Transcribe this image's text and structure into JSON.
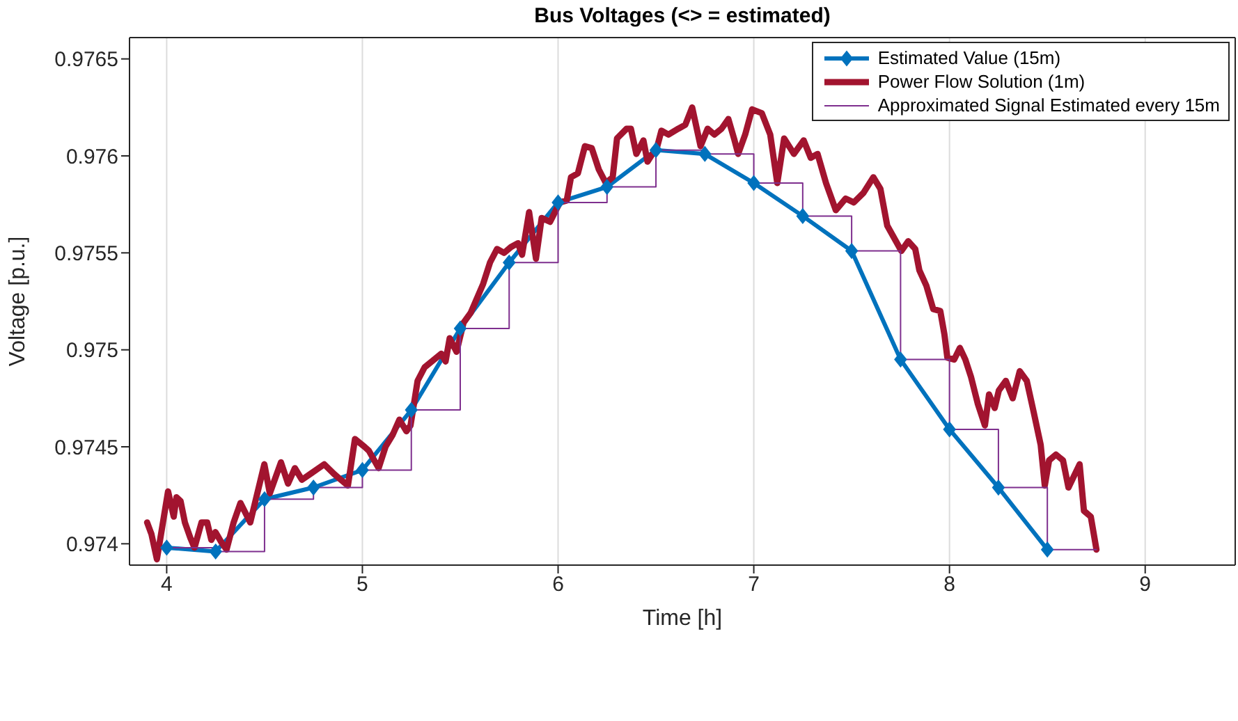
{
  "chart_data": {
    "type": "line",
    "title": "Bus Voltages (<> = estimated)",
    "xlabel": "Time [h]",
    "ylabel": "Voltage [p.u.]",
    "xlim": [
      3.81,
      9.46
    ],
    "xticks": [
      4,
      5,
      6,
      7,
      8,
      9
    ],
    "ylim": [
      0.97389,
      0.97661
    ],
    "yticks": [
      0.974,
      0.9745,
      0.975,
      0.9755,
      0.976,
      0.9765
    ],
    "grid": "x",
    "legend": "top right",
    "series": [
      {
        "name": "Estimated Value (15m)",
        "type": "line",
        "color": "#0072bd",
        "marker": "diamond",
        "x": [
          4,
          4.25,
          4.5,
          4.75,
          5,
          5.25,
          5.5,
          5.75,
          6,
          6.25,
          6.5,
          6.75,
          7,
          7.25,
          7.5,
          7.75,
          8,
          8.25,
          8.5
        ],
        "values": [
          0.97398,
          0.97396,
          0.97423,
          0.97429,
          0.97438,
          0.97469,
          0.97511,
          0.97545,
          0.97576,
          0.97584,
          0.97603,
          0.97601,
          0.97586,
          0.97569,
          0.97551,
          0.97495,
          0.97459,
          0.97429,
          0.97397
        ]
      },
      {
        "name": "Power Flow Solution (1m)",
        "type": "line",
        "color": "#a2142f",
        "x": [
          3.9,
          3.922,
          3.95,
          4.007,
          4.036,
          4.05,
          4.071,
          4.093,
          4.121,
          4.142,
          4.178,
          4.207,
          4.228,
          4.249,
          4.278,
          4.306,
          4.342,
          4.377,
          4.427,
          4.499,
          4.527,
          4.584,
          4.62,
          4.655,
          4.691,
          4.734,
          4.805,
          4.855,
          4.89,
          4.926,
          4.962,
          5.011,
          5.033,
          5.083,
          5.118,
          5.154,
          5.189,
          5.225,
          5.246,
          5.282,
          5.318,
          5.403,
          5.425,
          5.446,
          5.481,
          5.517,
          5.553,
          5.617,
          5.652,
          5.688,
          5.724,
          5.759,
          5.795,
          5.816,
          5.852,
          5.887,
          5.916,
          5.959,
          6.009,
          6.044,
          6.066,
          6.101,
          6.137,
          6.172,
          6.208,
          6.244,
          6.279,
          6.301,
          6.35,
          6.372,
          6.4,
          6.436,
          6.457,
          6.507,
          6.528,
          6.564,
          6.614,
          6.65,
          6.685,
          6.728,
          6.764,
          6.799,
          6.835,
          6.87,
          6.899,
          6.92,
          6.956,
          6.991,
          7.041,
          7.084,
          7.12,
          7.155,
          7.205,
          7.255,
          7.291,
          7.326,
          7.369,
          7.419,
          7.469,
          7.511,
          7.561,
          7.611,
          7.647,
          7.682,
          7.754,
          7.789,
          7.825,
          7.846,
          7.882,
          7.917,
          7.953,
          7.974,
          7.989,
          8.024,
          8.053,
          8.081,
          8.11,
          8.145,
          8.181,
          8.202,
          8.231,
          8.252,
          8.288,
          8.323,
          8.359,
          8.395,
          8.43,
          8.466,
          8.487,
          8.509,
          8.544,
          8.58,
          8.608,
          8.665,
          8.687,
          8.722,
          8.751
        ],
        "values": [
          0.97411,
          0.97405,
          0.97392,
          0.97427,
          0.97414,
          0.97424,
          0.97422,
          0.97411,
          0.97403,
          0.97398,
          0.97411,
          0.97411,
          0.97402,
          0.97406,
          0.97401,
          0.97397,
          0.97411,
          0.97421,
          0.97411,
          0.97441,
          0.97426,
          0.97442,
          0.97431,
          0.97439,
          0.97433,
          0.97436,
          0.97441,
          0.97436,
          0.97433,
          0.9743,
          0.97454,
          0.9745,
          0.97448,
          0.97439,
          0.9745,
          0.97456,
          0.97464,
          0.97458,
          0.97461,
          0.97484,
          0.97491,
          0.97498,
          0.97494,
          0.97506,
          0.97499,
          0.97514,
          0.97519,
          0.97534,
          0.97545,
          0.97552,
          0.9755,
          0.97553,
          0.97555,
          0.97549,
          0.97571,
          0.97547,
          0.97568,
          0.97566,
          0.97576,
          0.97577,
          0.97589,
          0.97591,
          0.97605,
          0.97604,
          0.97593,
          0.97586,
          0.97589,
          0.97609,
          0.97614,
          0.97614,
          0.97601,
          0.97608,
          0.97597,
          0.97605,
          0.97613,
          0.97611,
          0.97614,
          0.97616,
          0.97625,
          0.97605,
          0.97614,
          0.97611,
          0.97614,
          0.97619,
          0.97609,
          0.97601,
          0.97611,
          0.97624,
          0.97622,
          0.97611,
          0.97586,
          0.97609,
          0.97601,
          0.97608,
          0.97599,
          0.97601,
          0.97586,
          0.97572,
          0.97578,
          0.97576,
          0.97581,
          0.97589,
          0.97583,
          0.97564,
          0.97551,
          0.97556,
          0.97552,
          0.97541,
          0.97533,
          0.97521,
          0.9752,
          0.97508,
          0.97496,
          0.97495,
          0.97501,
          0.97495,
          0.97486,
          0.97472,
          0.97461,
          0.97477,
          0.9747,
          0.97479,
          0.97484,
          0.97475,
          0.97489,
          0.97484,
          0.97468,
          0.97451,
          0.9743,
          0.97443,
          0.97446,
          0.97443,
          0.97429,
          0.97441,
          0.97417,
          0.97414,
          0.97397
        ]
      },
      {
        "name": "Approximated Signal Estimated every 15m",
        "type": "step",
        "color": "#7e2f8e",
        "x": [
          4,
          4.25,
          4.5,
          4.75,
          5,
          5.25,
          5.5,
          5.75,
          6,
          6.25,
          6.5,
          6.75,
          7,
          7.25,
          7.5,
          7.75,
          8,
          8.25,
          8.5,
          8.75
        ],
        "values": [
          0.97398,
          0.97396,
          0.97423,
          0.97429,
          0.97438,
          0.97469,
          0.97511,
          0.97545,
          0.97576,
          0.97584,
          0.97603,
          0.97601,
          0.97586,
          0.97569,
          0.97551,
          0.97495,
          0.97459,
          0.97429,
          0.97397,
          0.97397
        ]
      }
    ]
  }
}
